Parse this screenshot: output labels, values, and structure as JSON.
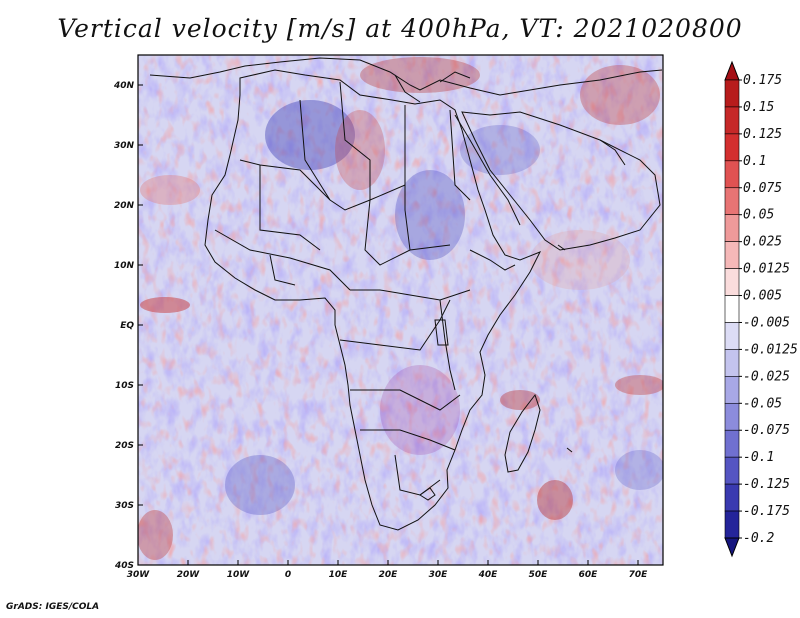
{
  "title": "Vertical velocity [m/s] at 400hPa, VT: 2021020800",
  "footer": "GrADS: IGES/COLA",
  "map": {
    "lon_range": [
      -30,
      75
    ],
    "lat_range": [
      -40,
      45
    ],
    "x_ticks": [
      {
        "value": -30,
        "label": "30W"
      },
      {
        "value": -20,
        "label": "20W"
      },
      {
        "value": -10,
        "label": "10W"
      },
      {
        "value": 0,
        "label": "0"
      },
      {
        "value": 10,
        "label": "10E"
      },
      {
        "value": 20,
        "label": "20E"
      },
      {
        "value": 30,
        "label": "30E"
      },
      {
        "value": 40,
        "label": "40E"
      },
      {
        "value": 50,
        "label": "50E"
      },
      {
        "value": 60,
        "label": "60E"
      },
      {
        "value": 70,
        "label": "70E"
      }
    ],
    "y_ticks": [
      {
        "value": 40,
        "label": "40N"
      },
      {
        "value": 30,
        "label": "30N"
      },
      {
        "value": 20,
        "label": "20N"
      },
      {
        "value": 10,
        "label": "10N"
      },
      {
        "value": 0,
        "label": "EQ"
      },
      {
        "value": -10,
        "label": "10S"
      },
      {
        "value": -20,
        "label": "20S"
      },
      {
        "value": -30,
        "label": "30S"
      },
      {
        "value": -40,
        "label": "40S"
      }
    ]
  },
  "colorbar": {
    "labels": [
      "0.175",
      "0.15",
      "0.125",
      "0.1",
      "0.075",
      "0.05",
      "0.025",
      "0.0125",
      "0.005",
      "-0.005",
      "-0.0125",
      "-0.025",
      "-0.05",
      "-0.075",
      "-0.1",
      "-0.125",
      "-0.175",
      "-0.2"
    ],
    "colors": [
      "#a50f15",
      "#b71c1c",
      "#c62828",
      "#d32f2f",
      "#e05252",
      "#e87474",
      "#ef9a9a",
      "#f5b8b8",
      "#fadcdc",
      "#ffffff",
      "#dcdcf5",
      "#c4c4ee",
      "#a8a8e6",
      "#8c8cdc",
      "#7070d0",
      "#5555c2",
      "#3a3ab0",
      "#24249a",
      "#15157e"
    ]
  },
  "colors": {
    "frame": "#000000",
    "coast": "#111111",
    "background": "#ffffff"
  }
}
